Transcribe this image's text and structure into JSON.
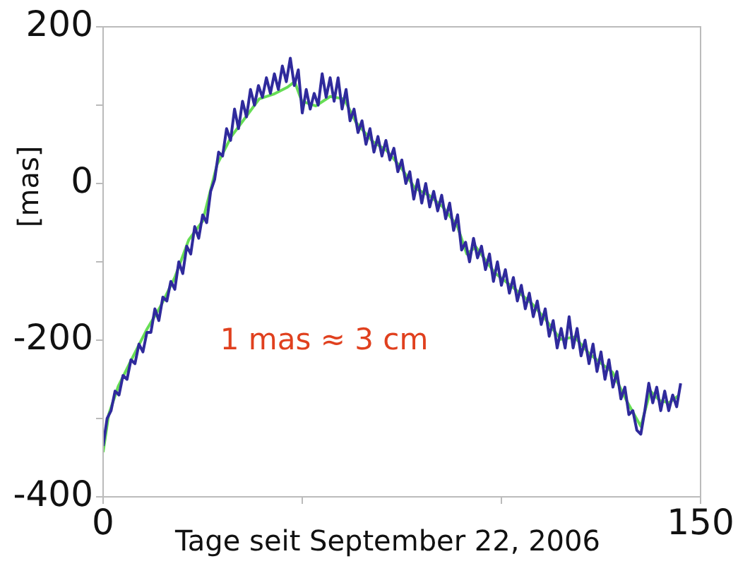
{
  "chart_data": {
    "type": "line",
    "xlabel": "Tage seit September 22, 2006",
    "ylabel": "[mas]",
    "xlim": [
      0,
      150
    ],
    "xticks": [
      0,
      {
        "value": 50,
        "label": null
      },
      {
        "value": 100,
        "label": null
      },
      150
    ],
    "ylim": [
      -400,
      200
    ],
    "yticks": [
      -400,
      {
        "value": -300,
        "label": null
      },
      -200,
      {
        "value": -100,
        "label": null
      },
      0,
      {
        "value": 100,
        "label": null
      },
      200
    ],
    "grid": false,
    "legend": false,
    "marker": "none",
    "line_style": "solid",
    "annotations": [
      "1 mas ≈ 3 cm"
    ],
    "series": [
      {
        "color": "#2f2a9c",
        "x": [
          0,
          1,
          2,
          3,
          4,
          5,
          6,
          7,
          8,
          9,
          10,
          11,
          12,
          13,
          14,
          15,
          16,
          17,
          18,
          19,
          20,
          21,
          22,
          23,
          24,
          25,
          26,
          27,
          28,
          29,
          30,
          31,
          32,
          33,
          34,
          35,
          36,
          37,
          38,
          39,
          40,
          41,
          42,
          43,
          44,
          45,
          46,
          47,
          48,
          49,
          50,
          51,
          52,
          53,
          54,
          55,
          56,
          57,
          58,
          59,
          60,
          61,
          62,
          63,
          64,
          65,
          66,
          67,
          68,
          69,
          70,
          71,
          72,
          73,
          74,
          75,
          76,
          77,
          78,
          79,
          80,
          81,
          82,
          83,
          84,
          85,
          86,
          87,
          88,
          89,
          90,
          91,
          92,
          93,
          94,
          95,
          96,
          97,
          98,
          99,
          100,
          101,
          102,
          103,
          104,
          105,
          106,
          107,
          108,
          109,
          110,
          111,
          112,
          113,
          114,
          115,
          116,
          117,
          118,
          119,
          120,
          121,
          122,
          123,
          124,
          125,
          126,
          127,
          128,
          129,
          130,
          131,
          132,
          133,
          134,
          135,
          136,
          137,
          138,
          139,
          140,
          141,
          142,
          143,
          144,
          145
        ],
        "values": [
          -335,
          -300,
          -290,
          -265,
          -270,
          -245,
          -250,
          -225,
          -230,
          -205,
          -215,
          -190,
          -190,
          -160,
          -175,
          -145,
          -150,
          -125,
          -135,
          -100,
          -115,
          -80,
          -90,
          -55,
          -70,
          -40,
          -50,
          -10,
          5,
          40,
          35,
          70,
          55,
          95,
          70,
          105,
          85,
          120,
          100,
          125,
          110,
          135,
          115,
          140,
          120,
          150,
          130,
          160,
          125,
          145,
          90,
          120,
          95,
          115,
          100,
          140,
          110,
          135,
          105,
          135,
          95,
          120,
          80,
          95,
          65,
          80,
          50,
          70,
          40,
          60,
          35,
          55,
          30,
          45,
          15,
          30,
          0,
          15,
          -20,
          5,
          -25,
          0,
          -30,
          -10,
          -35,
          -15,
          -45,
          -25,
          -60,
          -40,
          -85,
          -75,
          -100,
          -70,
          -95,
          -80,
          -110,
          -90,
          -125,
          -100,
          -130,
          -110,
          -140,
          -120,
          -150,
          -130,
          -160,
          -140,
          -170,
          -150,
          -180,
          -160,
          -195,
          -175,
          -210,
          -185,
          -210,
          -170,
          -210,
          -185,
          -220,
          -200,
          -230,
          -205,
          -240,
          -215,
          -250,
          -225,
          -260,
          -240,
          -275,
          -260,
          -295,
          -290,
          -315,
          -320,
          -290,
          -255,
          -280,
          -260,
          -290,
          -265,
          -290,
          -270,
          -285,
          -255
        ]
      },
      {
        "color": "#66dd55",
        "x": [
          0,
          1.4,
          3.8,
          7.3,
          10.9,
          14.4,
          18,
          21.5,
          25,
          28.6,
          32.2,
          35.7,
          39.2,
          42.8,
          46.3,
          48.1,
          49.9,
          53.4,
          57,
          60.5,
          63.5,
          67.6,
          71.2,
          74.7,
          78.3,
          81.8,
          85.3,
          88.9,
          91.3,
          93.6,
          98.3,
          103,
          107.8,
          111.3,
          114.9,
          118.4,
          122,
          124.9,
          127.9,
          131.4,
          135,
          137.4,
          139.7,
          142.1,
          144.4
        ],
        "values": [
          -343,
          -295,
          -259,
          -223,
          -187,
          -157,
          -120,
          -72,
          -48,
          24,
          60,
          84,
          108,
          114,
          123,
          130,
          105,
          99,
          111,
          108,
          78,
          54,
          42,
          21,
          -6,
          -15,
          -30,
          -54,
          -90,
          -81,
          -114,
          -133,
          -154,
          -175,
          -199,
          -196,
          -217,
          -229,
          -241,
          -277,
          -310,
          -265,
          -277,
          -280,
          -271
        ]
      }
    ]
  }
}
